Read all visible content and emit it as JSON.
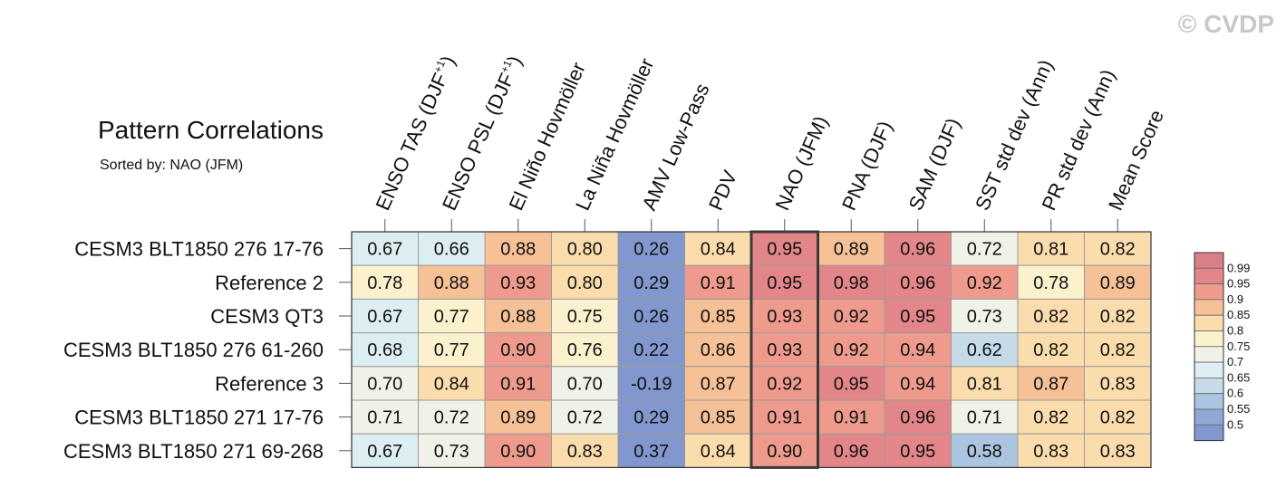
{
  "watermark": "© CVDP",
  "title": "Pattern Correlations",
  "subtitle": "Sorted by: NAO (JFM)",
  "chart_data": {
    "type": "heatmap",
    "title": "Pattern Correlations",
    "subtitle": "Sorted by: NAO (JFM)",
    "columns": [
      {
        "base": "ENSO TAS (DJF",
        "sup": "+1",
        "tail": ")"
      },
      {
        "base": "ENSO PSL (DJF",
        "sup": "+1",
        "tail": ")"
      },
      {
        "base": "El Niño Hovmöller"
      },
      {
        "base": "La Niña Hovmöller"
      },
      {
        "base": "AMV Low-Pass"
      },
      {
        "base": "PDV"
      },
      {
        "base": "NAO (JFM)"
      },
      {
        "base": "PNA (DJF)"
      },
      {
        "base": "SAM (DJF)"
      },
      {
        "base": "SST std dev (Ann)"
      },
      {
        "base": "PR std dev (Ann)"
      },
      {
        "base": "Mean Score"
      }
    ],
    "rows": [
      "CESM3 BLT1850 276 17-76",
      "Reference 2",
      "CESM3 QT3",
      "CESM3 BLT1850 276 61-260",
      "Reference 3",
      "CESM3 BLT1850 271 17-76",
      "CESM3 BLT1850 271 69-268"
    ],
    "values": [
      [
        "0.67",
        "0.66",
        "0.88",
        "0.80",
        "0.26",
        "0.84",
        "0.95",
        "0.89",
        "0.96",
        "0.72",
        "0.81",
        "0.82"
      ],
      [
        "0.78",
        "0.88",
        "0.93",
        "0.80",
        "0.29",
        "0.91",
        "0.95",
        "0.98",
        "0.96",
        "0.92",
        "0.78",
        "0.89"
      ],
      [
        "0.67",
        "0.77",
        "0.88",
        "0.75",
        "0.26",
        "0.85",
        "0.93",
        "0.92",
        "0.95",
        "0.73",
        "0.82",
        "0.82"
      ],
      [
        "0.68",
        "0.77",
        "0.90",
        "0.76",
        "0.22",
        "0.86",
        "0.93",
        "0.92",
        "0.94",
        "0.62",
        "0.82",
        "0.82"
      ],
      [
        "0.70",
        "0.84",
        "0.91",
        "0.70",
        "-0.19",
        "0.87",
        "0.92",
        "0.95",
        "0.94",
        "0.81",
        "0.87",
        "0.83"
      ],
      [
        "0.71",
        "0.72",
        "0.89",
        "0.72",
        "0.29",
        "0.85",
        "0.91",
        "0.91",
        "0.96",
        "0.71",
        "0.82",
        "0.82"
      ],
      [
        "0.67",
        "0.73",
        "0.90",
        "0.83",
        "0.37",
        "0.84",
        "0.90",
        "0.96",
        "0.95",
        "0.58",
        "0.83",
        "0.83"
      ]
    ],
    "highlighted_column": "NAO (JFM)",
    "colorbar": {
      "labels": [
        "0.99",
        "0.95",
        "0.9",
        "0.85",
        "0.8",
        "0.75",
        "0.7",
        "0.65",
        "0.6",
        "0.55",
        "0.5"
      ],
      "colors": [
        "#d97f87",
        "#e3868a",
        "#ee9b8d",
        "#f7c197",
        "#fbddad",
        "#fbf1cd",
        "#f0f1e7",
        "#ddeef3",
        "#c5dbe8",
        "#abc5e0",
        "#90a8d3",
        "#8297cd"
      ]
    }
  }
}
